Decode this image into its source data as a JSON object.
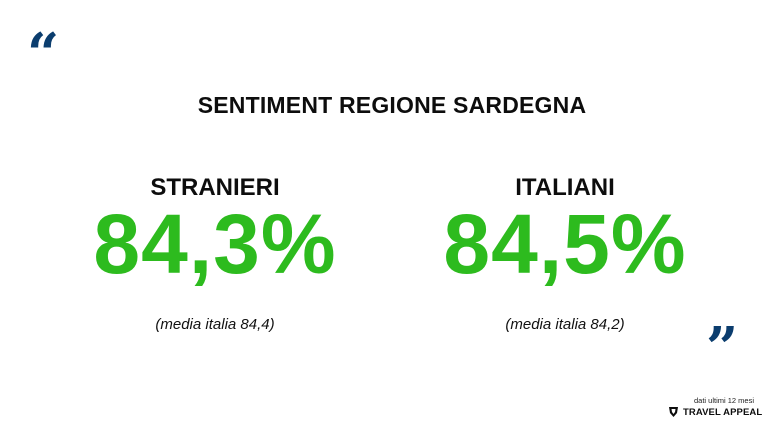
{
  "quotes": {
    "open": "“",
    "close": "”"
  },
  "title": "SENTIMENT REGIONE SARDEGNA",
  "stats": [
    {
      "label": "STRANIERI",
      "value": "84,3%",
      "note": "(media italia 84,4)"
    },
    {
      "label": "ITALIANI",
      "value": "84,5%",
      "note": "(media italia 84,2)"
    }
  ],
  "footer": {
    "note": "dati ultimi 12 mesi",
    "brand": "TRAVEL APPEAL",
    "brand_icon": "travel-appeal-logo-icon"
  },
  "colors": {
    "accent_green": "#2dbb1e",
    "quote_blue": "#0b3d6e",
    "text": "#0d0d0d"
  }
}
